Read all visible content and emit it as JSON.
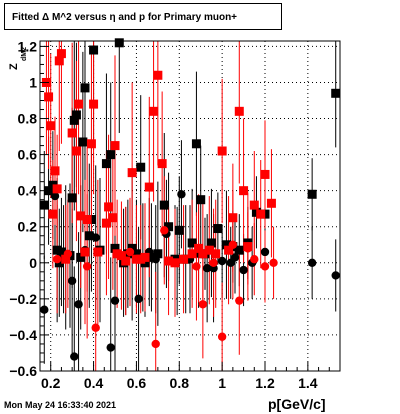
{
  "chart_data": {
    "type": "scatter",
    "title": "Fitted Δ M^2 versus η and p for Primary muon+",
    "xlabel": "p[GeV/c]",
    "ylabel": "Z",
    "ylabel_subscript": "dM2",
    "xlim": [
      0.15,
      1.55
    ],
    "ylim": [
      -0.6,
      1.23
    ],
    "grid": true,
    "x_ticks": [
      0.2,
      0.4,
      0.6,
      0.8,
      1.0,
      1.2,
      1.4
    ],
    "x_tick_labels": [
      "0.2",
      "0.4",
      "0.6",
      "0.8",
      "1",
      "1.2",
      "1.4"
    ],
    "y_ticks": [
      -0.6,
      -0.4,
      -0.2,
      0.0,
      0.2,
      0.4,
      0.6,
      0.8,
      1.0,
      1.2
    ],
    "y_tick_labels": [
      "−0.6",
      "−0.4",
      "−0.2",
      "0",
      "0.2",
      "0.4",
      "0.6",
      "0.8",
      "1",
      "1.2"
    ],
    "series": [
      {
        "color": "#000000",
        "marker": "square",
        "points": [
          [
            0.17,
            0.32,
            0.3
          ],
          [
            0.19,
            0.4,
            0.3
          ],
          [
            0.21,
            0.43,
            0.3
          ],
          [
            0.23,
            0.07,
            0.4
          ],
          [
            0.24,
            0.0,
            0.3
          ],
          [
            0.25,
            0.06,
            0.3
          ],
          [
            0.27,
            0.03,
            0.4
          ],
          [
            0.29,
            0.04,
            0.4
          ],
          [
            0.3,
            0.36,
            0.5
          ],
          [
            0.31,
            0.79,
            0.5
          ],
          [
            0.32,
            0.82,
            0.4
          ],
          [
            0.34,
            0.03,
            0.4
          ],
          [
            0.35,
            0.67,
            0.5
          ],
          [
            0.36,
            0.97,
            0.5
          ],
          [
            0.38,
            0.15,
            0.4
          ],
          [
            0.39,
            0.24,
            0.4
          ],
          [
            0.4,
            1.18,
            0.5
          ],
          [
            0.43,
            0.07,
            0.4
          ],
          [
            0.46,
            0.55,
            0.5
          ],
          [
            0.48,
            0.6,
            0.4
          ],
          [
            0.5,
            0.08,
            0.4
          ],
          [
            0.52,
            1.22,
            0.5
          ],
          [
            0.54,
            0.0,
            0.3
          ],
          [
            0.56,
            0.05,
            0.3
          ],
          [
            0.58,
            0.08,
            0.4
          ],
          [
            0.6,
            0.05,
            0.3
          ],
          [
            0.62,
            0.53,
            0.4
          ],
          [
            0.64,
            0.0,
            0.3
          ],
          [
            0.67,
            0.03,
            0.3
          ],
          [
            0.7,
            0.05,
            0.4
          ],
          [
            0.73,
            0.32,
            0.4
          ],
          [
            0.75,
            0.2,
            0.3
          ],
          [
            0.78,
            0.02,
            0.3
          ],
          [
            0.8,
            0.18,
            0.3
          ],
          [
            0.83,
            0.02,
            0.3
          ],
          [
            0.86,
            0.11,
            0.3
          ],
          [
            0.88,
            0.66,
            0.4
          ],
          [
            0.9,
            0.35,
            0.3
          ],
          [
            0.92,
            0.05,
            0.2
          ],
          [
            0.95,
            0.11,
            0.3
          ],
          [
            0.98,
            0.19,
            0.2
          ],
          [
            1.02,
            0.1,
            0.3
          ],
          [
            1.05,
            0.09,
            0.2
          ],
          [
            1.08,
            0.07,
            0.2
          ],
          [
            1.12,
            0.11,
            0.2
          ],
          [
            1.16,
            0.28,
            0.2
          ],
          [
            1.2,
            0.27,
            0.2
          ],
          [
            1.42,
            0.38,
            0.2
          ],
          [
            1.53,
            0.94,
            0.3
          ]
        ]
      },
      {
        "color": "#000000",
        "marker": "circle",
        "points": [
          [
            0.17,
            -0.26,
            0.3
          ],
          [
            0.22,
            0.37,
            0.3
          ],
          [
            0.26,
            0.02,
            0.3
          ],
          [
            0.3,
            -0.1,
            0.4
          ],
          [
            0.31,
            -0.52,
            0.5
          ],
          [
            0.33,
            -0.23,
            0.4
          ],
          [
            0.36,
            0.07,
            0.4
          ],
          [
            0.41,
            0.14,
            0.4
          ],
          [
            0.48,
            -0.47,
            0.5
          ],
          [
            0.5,
            -0.21,
            0.4
          ],
          [
            0.55,
            0.01,
            0.3
          ],
          [
            0.61,
            -0.2,
            0.4
          ],
          [
            0.63,
            0.03,
            0.3
          ],
          [
            0.66,
            0.06,
            0.3
          ],
          [
            0.69,
            0.02,
            0.3
          ],
          [
            0.74,
            0.16,
            0.3
          ],
          [
            0.79,
            0.01,
            0.3
          ],
          [
            0.81,
            0.38,
            0.3
          ],
          [
            0.85,
            0.02,
            0.3
          ],
          [
            0.89,
            0.05,
            0.3
          ],
          [
            0.93,
            -0.03,
            0.3
          ],
          [
            0.96,
            -0.03,
            0.3
          ],
          [
            1.0,
            0.01,
            0.2
          ],
          [
            1.04,
            0.0,
            0.2
          ],
          [
            1.06,
            0.03,
            0.2
          ],
          [
            1.1,
            -0.04,
            0.2
          ],
          [
            1.14,
            0.0,
            0.2
          ],
          [
            1.2,
            0.06,
            0.2
          ],
          [
            1.42,
            0.0,
            0.2
          ],
          [
            1.53,
            -0.07,
            0.2
          ]
        ]
      },
      {
        "color": "#ff0000",
        "marker": "square",
        "points": [
          [
            0.18,
            1.0,
            0.4
          ],
          [
            0.19,
            0.92,
            0.4
          ],
          [
            0.2,
            0.76,
            0.4
          ],
          [
            0.21,
            0.27,
            0.3
          ],
          [
            0.22,
            0.51,
            0.3
          ],
          [
            0.23,
            0.41,
            0.3
          ],
          [
            0.24,
            1.12,
            0.5
          ],
          [
            0.25,
            1.16,
            0.5
          ],
          [
            0.27,
            0.02,
            0.3
          ],
          [
            0.3,
            0.72,
            0.5
          ],
          [
            0.32,
            0.62,
            0.5
          ],
          [
            0.33,
            0.88,
            0.5
          ],
          [
            0.34,
            0.26,
            0.4
          ],
          [
            0.36,
            0.06,
            0.4
          ],
          [
            0.37,
            0.24,
            0.4
          ],
          [
            0.39,
            0.66,
            0.5
          ],
          [
            0.4,
            0.88,
            0.5
          ],
          [
            0.42,
            0.06,
            0.4
          ],
          [
            0.46,
            0.22,
            0.4
          ],
          [
            0.47,
            0.31,
            0.4
          ],
          [
            0.49,
            0.25,
            0.4
          ],
          [
            0.5,
            0.65,
            0.5
          ],
          [
            0.51,
            0.05,
            0.3
          ],
          [
            0.53,
            0.04,
            0.3
          ],
          [
            0.55,
            0.01,
            0.3
          ],
          [
            0.58,
            0.5,
            0.5
          ],
          [
            0.6,
            0.02,
            0.3
          ],
          [
            0.62,
            0.02,
            0.3
          ],
          [
            0.64,
            0.03,
            0.3
          ],
          [
            0.66,
            0.42,
            0.5
          ],
          [
            0.68,
            0.84,
            0.5
          ],
          [
            0.7,
            1.04,
            0.5
          ],
          [
            0.72,
            0.55,
            0.4
          ],
          [
            0.75,
            0.01,
            0.3
          ],
          [
            0.78,
            0.0,
            0.3
          ],
          [
            0.82,
            0.02,
            0.3
          ],
          [
            0.86,
            0.05,
            0.3
          ],
          [
            0.89,
            0.08,
            0.3
          ],
          [
            0.91,
            0.05,
            0.3
          ],
          [
            0.94,
            0.07,
            0.3
          ],
          [
            0.97,
            0.05,
            0.3
          ],
          [
            1.0,
            0.62,
            0.4
          ],
          [
            1.03,
            0.07,
            0.3
          ],
          [
            1.05,
            0.25,
            0.3
          ],
          [
            1.08,
            0.84,
            0.4
          ],
          [
            1.1,
            0.4,
            0.4
          ],
          [
            1.12,
            0.09,
            0.3
          ],
          [
            1.15,
            0.32,
            0.3
          ],
          [
            1.18,
            0.27,
            0.3
          ],
          [
            1.2,
            0.49,
            0.3
          ],
          [
            1.23,
            0.33,
            0.3
          ]
        ]
      },
      {
        "color": "#ff0000",
        "marker": "circle",
        "points": [
          [
            0.23,
            0.02,
            0.3
          ],
          [
            0.28,
            0.05,
            0.3
          ],
          [
            0.37,
            -0.02,
            0.4
          ],
          [
            0.41,
            -0.36,
            0.5
          ],
          [
            0.57,
            0.06,
            0.3
          ],
          [
            0.69,
            -0.45,
            0.4
          ],
          [
            0.73,
            0.18,
            0.3
          ],
          [
            0.88,
            -0.02,
            0.3
          ],
          [
            0.91,
            -0.23,
            0.3
          ],
          [
            0.96,
            0.0,
            0.3
          ],
          [
            1.0,
            -0.41,
            0.3
          ],
          [
            1.05,
            0.1,
            0.3
          ],
          [
            1.08,
            -0.21,
            0.3
          ],
          [
            1.12,
            0.08,
            0.2
          ],
          [
            1.15,
            0.02,
            0.2
          ],
          [
            1.2,
            -0.02,
            0.2
          ],
          [
            1.24,
            0.0,
            0.2
          ]
        ]
      }
    ]
  },
  "footer": {
    "timestamp": "Mon May 24 16:33:40 2021"
  }
}
